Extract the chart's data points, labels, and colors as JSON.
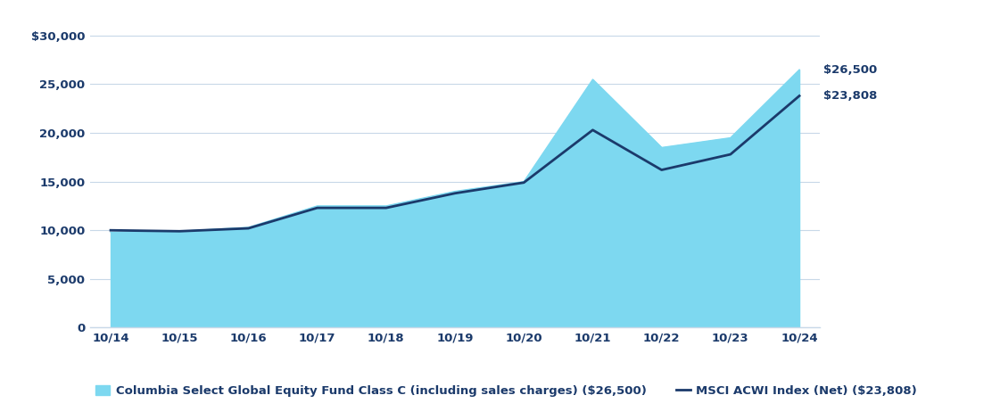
{
  "x_labels": [
    "10/14",
    "10/15",
    "10/16",
    "10/17",
    "10/18",
    "10/19",
    "10/20",
    "10/21",
    "10/22",
    "10/23",
    "10/24"
  ],
  "fund_values": [
    9800,
    9900,
    10300,
    12500,
    12500,
    14000,
    15000,
    25500,
    18500,
    19500,
    26500
  ],
  "index_values": [
    10000,
    9900,
    10200,
    12300,
    12300,
    13800,
    14900,
    20300,
    16200,
    17800,
    23808
  ],
  "fund_color": "#7DD8F0",
  "index_color": "#1B3A6B",
  "background_color": "#FFFFFF",
  "grid_color": "#C8D8E8",
  "y_ticks": [
    0,
    5000,
    10000,
    15000,
    20000,
    25000,
    30000
  ],
  "y_tick_labels": [
    "0",
    "5,000",
    "10,000",
    "15,000",
    "20,000",
    "25,000",
    "$30,000"
  ],
  "ylim": [
    0,
    31500
  ],
  "end_label_fund": "$26,500",
  "end_label_index": "$23,808",
  "legend_fund": "Columbia Select Global Equity Fund Class C (including sales charges) ($26,500)",
  "legend_index": "MSCI ACWI Index (Net) ($23,808)",
  "text_color": "#1B3A6B",
  "axis_label_fontsize": 9.5,
  "legend_fontsize": 9.5
}
